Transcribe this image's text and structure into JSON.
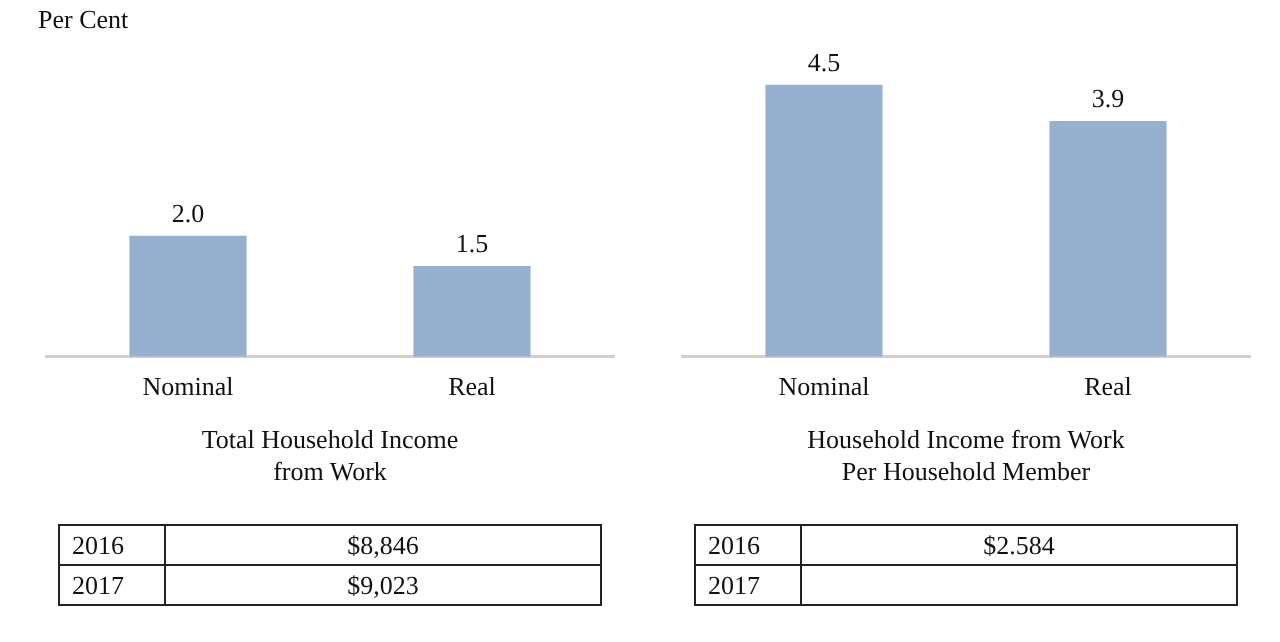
{
  "chart_data": [
    {
      "type": "bar",
      "ylabel": "Per Cent",
      "categories": [
        "Nominal",
        "Real"
      ],
      "values": [
        2.0,
        1.5
      ],
      "value_labels": [
        "2.0",
        "1.5"
      ],
      "color": "#98b0cf",
      "grid": false,
      "legend": false,
      "tick_labels": "x",
      "xlabel": "Total Household Income\nfrom Work",
      "annotations": [
        "2016",
        "$8,846",
        "2017",
        "$9,023"
      ]
    },
    {
      "type": "bar",
      "categories": [
        "Nominal",
        "Real"
      ],
      "values": [
        4.5,
        3.9
      ],
      "value_labels": [
        "4.5",
        "3.9"
      ],
      "color": "#98b0cf",
      "grid": false,
      "legend": false,
      "tick_labels": "x",
      "xlabel": "Household Income from Work\nPer Household Member",
      "annotations": [
        "2016",
        "$2.584",
        "2017"
      ]
    }
  ]
}
